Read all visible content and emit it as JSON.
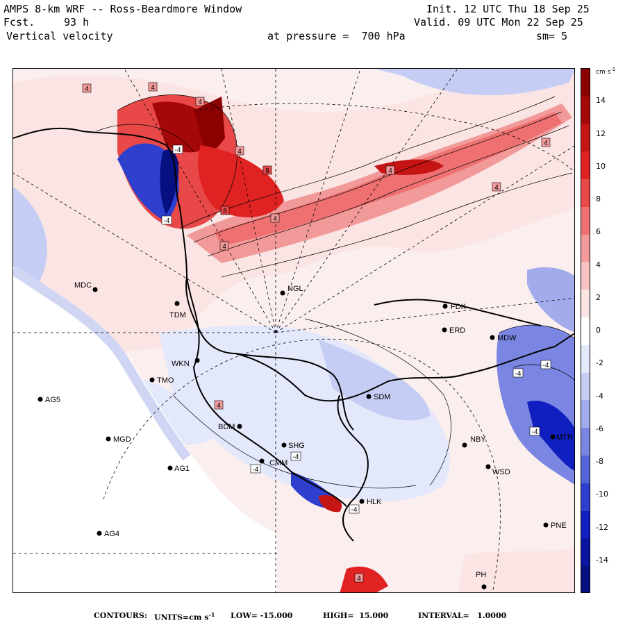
{
  "header": {
    "model": "AMPS 8-km WRF -- Ross-Beardmore Window",
    "fcst_label": "Fcst.",
    "fcst_hours": "93 h",
    "field": "Vertical velocity",
    "init": "Init. 12 UTC Thu 18 Sep 25",
    "valid": "Valid. 09 UTC Mon 22 Sep 25",
    "pressure": "at pressure =  700 hPa",
    "smoothing": "sm= 5"
  },
  "colorbar": {
    "units": "cm s",
    "units_exp": "-1",
    "ticks": [
      "14",
      "12",
      "10",
      "8",
      "6",
      "4",
      "2",
      "0",
      "-2",
      "-4",
      "-6",
      "-8",
      "-10",
      "-12",
      "-14"
    ],
    "colors": [
      "#8b0000",
      "#a50808",
      "#c41414",
      "#e02222",
      "#e84848",
      "#ee7070",
      "#f29a9a",
      "#f6c2c2",
      "#fbe4e4",
      "#ffffff",
      "#e4e8fb",
      "#c6cdf4",
      "#a2acec",
      "#7a86e2",
      "#5565d8",
      "#2e3fce",
      "#1020c0",
      "#0a149e",
      "#061080"
    ]
  },
  "stations": [
    {
      "id": "MDC"
    },
    {
      "id": "NGL"
    },
    {
      "id": "TDM"
    },
    {
      "id": "FDK"
    },
    {
      "id": "ERD"
    },
    {
      "id": "MDW"
    },
    {
      "id": "WKN"
    },
    {
      "id": "TMO"
    },
    {
      "id": "AG5"
    },
    {
      "id": "SDM"
    },
    {
      "id": "BDM"
    },
    {
      "id": "MGD"
    },
    {
      "id": "SHG"
    },
    {
      "id": "CMM"
    },
    {
      "id": "NBY"
    },
    {
      "id": "AG1"
    },
    {
      "id": "HLK"
    },
    {
      "id": "WSD"
    },
    {
      "id": "AG4"
    },
    {
      "id": "PNE"
    },
    {
      "id": "PH"
    },
    {
      "id": "MTR"
    }
  ],
  "contour_labels": [
    "4",
    "4",
    "4",
    "4",
    "4",
    "8",
    "8",
    "4",
    "4",
    "4",
    "4",
    "4",
    "4",
    "-4",
    "-4",
    "-4",
    "-4",
    "-4",
    "-4",
    "-4",
    "-4"
  ],
  "footer": {
    "contours_label": "CONTOURS:",
    "units_label": "UNITS=cm s",
    "units_exp": "-1",
    "low": "LOW= -15.000",
    "high": "HIGH=  15.000",
    "interval": "INTERVAL=   1.0000"
  }
}
